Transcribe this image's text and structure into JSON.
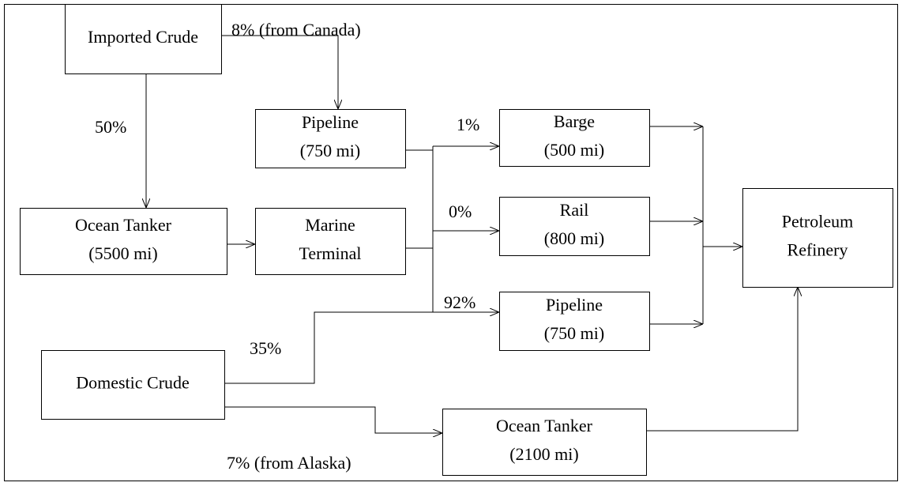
{
  "nodes": [
    {
      "lines": [
        "Imported Crude"
      ]
    },
    {
      "lines": [
        "Pipeline",
        "(750 mi)"
      ]
    },
    {
      "lines": [
        "Ocean Tanker",
        "(5500 mi)"
      ]
    },
    {
      "lines": [
        "Marine",
        "Terminal"
      ]
    },
    {
      "lines": [
        "Domestic Crude"
      ]
    },
    {
      "lines": [
        "Barge",
        "(500 mi)"
      ]
    },
    {
      "lines": [
        "Rail",
        "(800 mi)"
      ]
    },
    {
      "lines": [
        "Pipeline",
        "(750 mi)"
      ]
    },
    {
      "lines": [
        "Ocean Tanker",
        "(2100 mi)"
      ]
    },
    {
      "lines": [
        "Petroleum",
        "Refinery"
      ]
    }
  ],
  "edge_labels": [
    "8% (from Canada)",
    "50%",
    "1%",
    "0%",
    "92%",
    "35%",
    "7% (from Alaska)"
  ]
}
